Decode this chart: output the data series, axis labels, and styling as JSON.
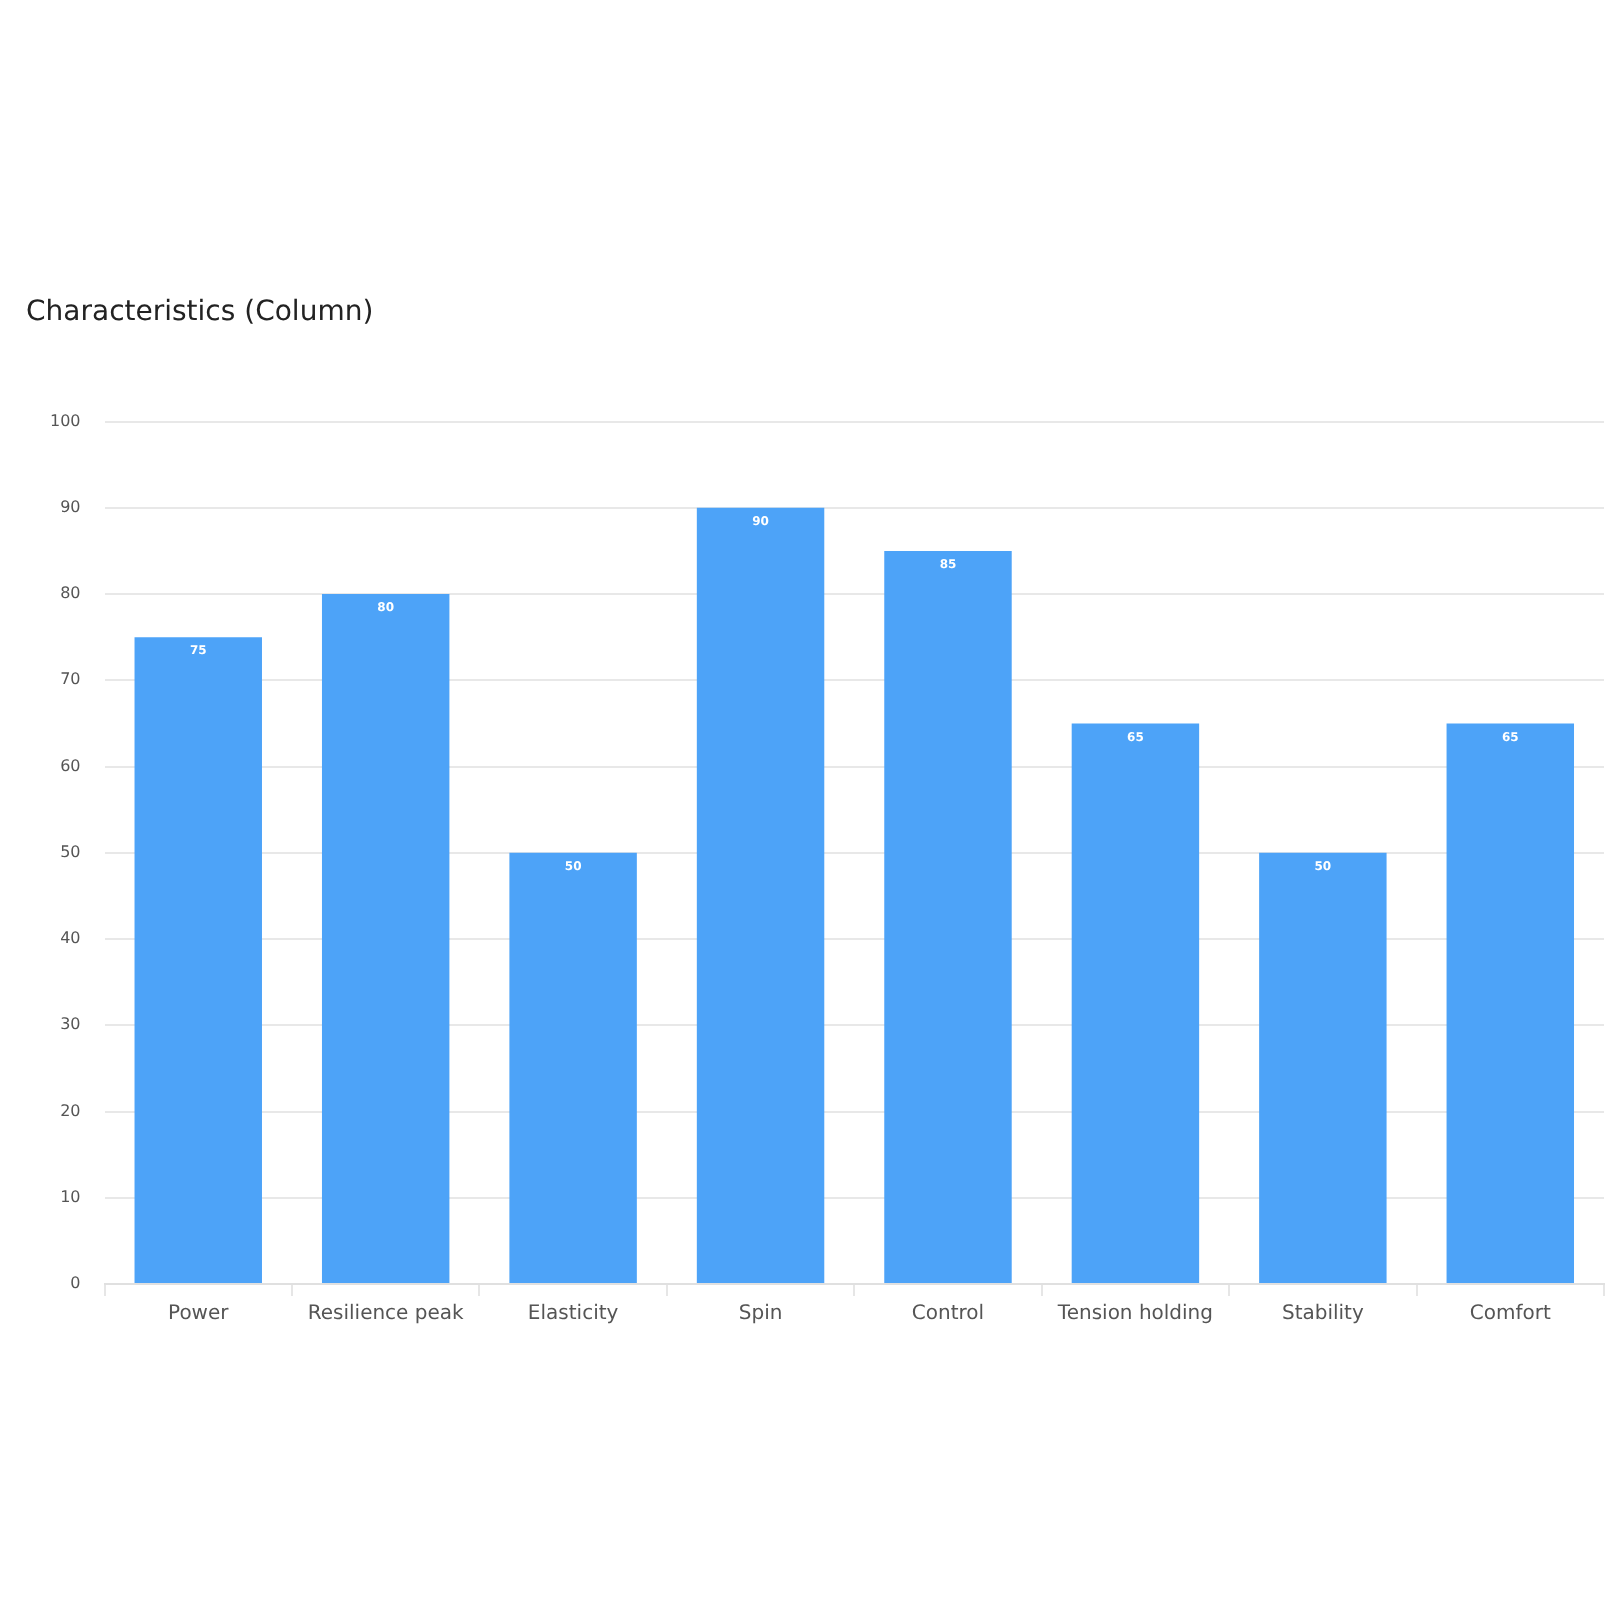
{
  "chart_data": {
    "type": "bar",
    "title": "Characteristics (Column)",
    "categories": [
      "Power",
      "Resilience peak",
      "Elasticity",
      "Spin",
      "Control",
      "Tension holding",
      "Stability",
      "Comfort"
    ],
    "values": [
      75,
      80,
      50,
      90,
      85,
      65,
      50,
      65
    ],
    "color": "#4da3f8",
    "ylim": [
      0,
      100
    ],
    "yticks": [
      0,
      10,
      20,
      30,
      40,
      50,
      60,
      70,
      80,
      90,
      100
    ],
    "grid": "y",
    "data_labels": true,
    "legend": false
  }
}
